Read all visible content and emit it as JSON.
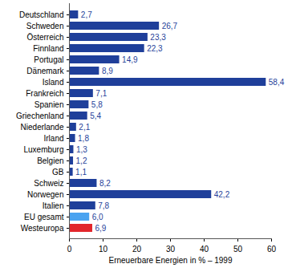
{
  "chart_data": {
    "type": "bar",
    "orientation": "horizontal",
    "x_label": "Erneuerbare Energien in % – 1999",
    "categories": [
      "Deutschland",
      "Schweden",
      "Österreich",
      "Finnland",
      "Portugal",
      "Dänemark",
      "Island",
      "Frankreich",
      "Spanien",
      "Griechenland",
      "Niederlande",
      "Irland",
      "Luxemburg",
      "Belgien",
      "GB",
      "Schweiz",
      "Norwegen",
      "Italien",
      "EU gesamt",
      "Westeuropa"
    ],
    "values": [
      2.7,
      26.7,
      23.3,
      22.3,
      14.9,
      8.9,
      58.4,
      7.1,
      5.8,
      5.4,
      2.1,
      1.8,
      1.3,
      1.2,
      1.1,
      8.2,
      42.2,
      7.8,
      6.0,
      6.9
    ],
    "value_labels": [
      "2,7",
      "26,7",
      "23,3",
      "22,3",
      "14,9",
      "8,9",
      "58,4",
      "7,1",
      "5,8",
      "5,4",
      "2,1",
      "1,8",
      "1,3",
      "1,2",
      "1,1",
      "8,2",
      "42,2",
      "7,8",
      "6,0",
      "6,9"
    ],
    "colors": [
      "#1f3f9a",
      "#1f3f9a",
      "#1f3f9a",
      "#1f3f9a",
      "#1f3f9a",
      "#1f3f9a",
      "#1f3f9a",
      "#1f3f9a",
      "#1f3f9a",
      "#1f3f9a",
      "#1f3f9a",
      "#1f3f9a",
      "#1f3f9a",
      "#1f3f9a",
      "#1f3f9a",
      "#1f3f9a",
      "#1f3f9a",
      "#1f3f9a",
      "#4aa3f0",
      "#e2262b"
    ],
    "data_labels": true,
    "xlim": [
      0,
      60
    ],
    "xticks": [
      0,
      10,
      20,
      30,
      40,
      50,
      60
    ],
    "grid": false
  }
}
